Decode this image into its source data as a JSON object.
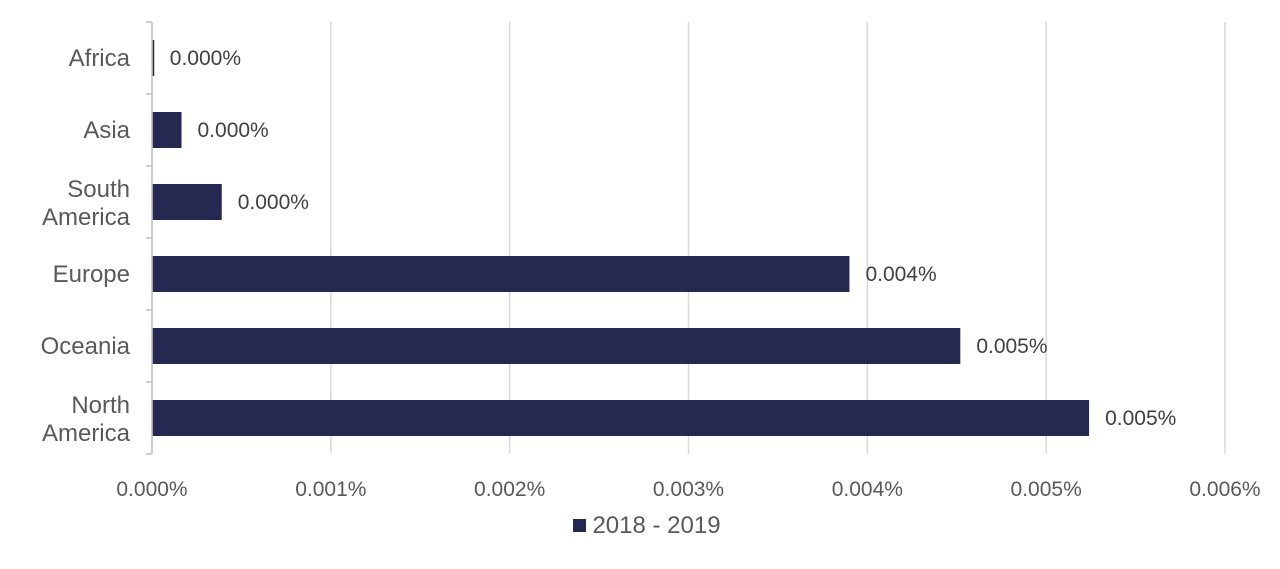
{
  "chart_data": {
    "type": "bar",
    "orientation": "horizontal",
    "categories": [
      "Africa",
      "Asia",
      "South America",
      "Europe",
      "Oceania",
      "North America"
    ],
    "series": [
      {
        "name": "2018 - 2019",
        "values": [
          1e-05,
          0.000165,
          0.00039,
          0.0039,
          0.00452,
          0.00524
        ],
        "data_labels": [
          "0.000%",
          "0.000%",
          "0.000%",
          "0.004%",
          "0.005%",
          "0.005%"
        ]
      }
    ],
    "xlim": [
      0,
      0.006
    ],
    "x_ticks": [
      0,
      0.001,
      0.002,
      0.003,
      0.004,
      0.005,
      0.006
    ],
    "x_tick_labels": [
      "0.000%",
      "0.001%",
      "0.002%",
      "0.003%",
      "0.004%",
      "0.005%",
      "0.006%"
    ],
    "title": "",
    "xlabel": "",
    "ylabel": "",
    "grid": "vertical",
    "legend_position": "bottom",
    "colors": {
      "bar": "#252850",
      "grid": "#d9d9d9",
      "axis": "#bfbfbf",
      "text": "#595959"
    }
  }
}
